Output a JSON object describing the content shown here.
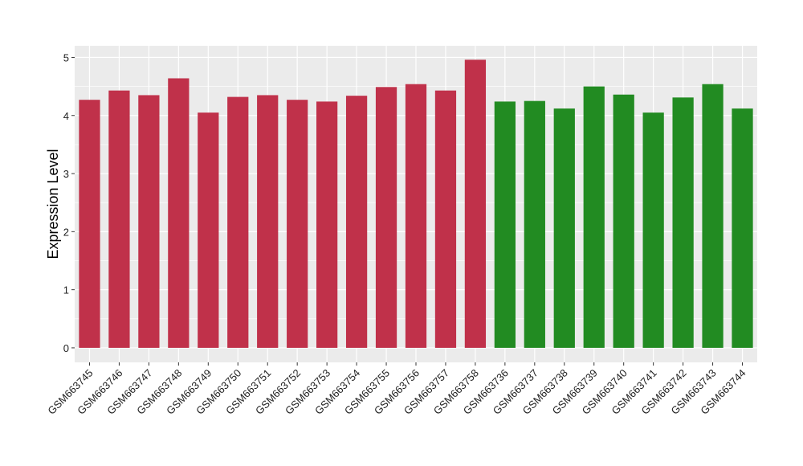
{
  "chart_data": {
    "type": "bar",
    "title": "",
    "xlabel": "",
    "ylabel": "Expression Level",
    "ylim": [
      -0.25,
      5.2
    ],
    "yticks": [
      0,
      1,
      2,
      3,
      4,
      5
    ],
    "grid": true,
    "categories": [
      "GSM663745",
      "GSM663746",
      "GSM663747",
      "GSM663748",
      "GSM663749",
      "GSM663750",
      "GSM663751",
      "GSM663752",
      "GSM663753",
      "GSM663754",
      "GSM663755",
      "GSM663756",
      "GSM663757",
      "GSM663758",
      "GSM663736",
      "GSM663737",
      "GSM663738",
      "GSM663739",
      "GSM663740",
      "GSM663741",
      "GSM663742",
      "GSM663743",
      "GSM663744"
    ],
    "values": [
      4.27,
      4.43,
      4.35,
      4.64,
      4.05,
      4.32,
      4.35,
      4.27,
      4.24,
      4.34,
      4.49,
      4.54,
      4.43,
      4.96,
      4.24,
      4.25,
      4.12,
      4.5,
      4.36,
      4.05,
      4.31,
      4.54,
      4.12
    ],
    "group_colors": [
      "#C0314A",
      "#C0314A",
      "#C0314A",
      "#C0314A",
      "#C0314A",
      "#C0314A",
      "#C0314A",
      "#C0314A",
      "#C0314A",
      "#C0314A",
      "#C0314A",
      "#C0314A",
      "#C0314A",
      "#C0314A",
      "#228B22",
      "#228B22",
      "#228B22",
      "#228B22",
      "#228B22",
      "#228B22",
      "#228B22",
      "#228B22",
      "#228B22"
    ],
    "panel_background": "#EBEBEB",
    "legend": "none"
  }
}
